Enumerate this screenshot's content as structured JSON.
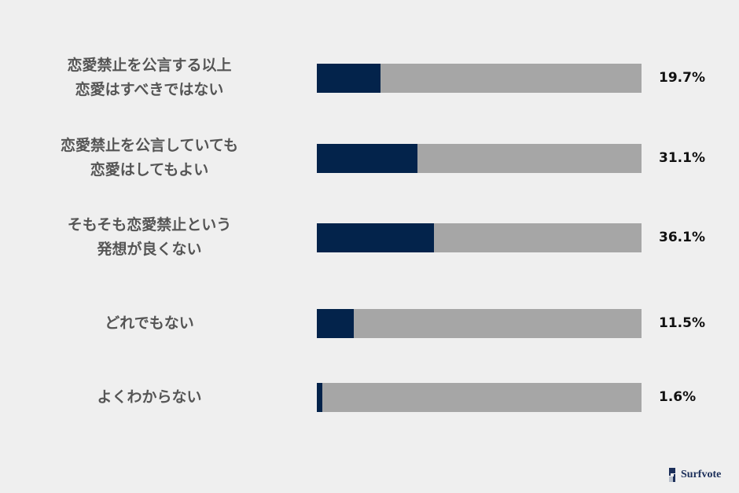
{
  "chart_data": {
    "type": "bar",
    "orientation": "horizontal",
    "stacked_to_100": true,
    "categories": [
      "恋愛禁止を公言する以上\n恋愛はすべきではない",
      "恋愛禁止を公言していても\n恋愛はしてもよい",
      "そもそも恋愛禁止という\n発想が良くない",
      "どれでもない",
      "よくわからない"
    ],
    "values": [
      19.7,
      31.1,
      36.1,
      11.5,
      1.6
    ],
    "value_labels": [
      "19.7%",
      "31.1%",
      "36.1%",
      "11.5%",
      "1.6%"
    ],
    "xlim": [
      0,
      100
    ],
    "grid": false,
    "colors": {
      "fill": "#03234b",
      "track": "#a6a6a6",
      "background": "#efefef"
    }
  },
  "logo": {
    "text": "Surfvote"
  }
}
